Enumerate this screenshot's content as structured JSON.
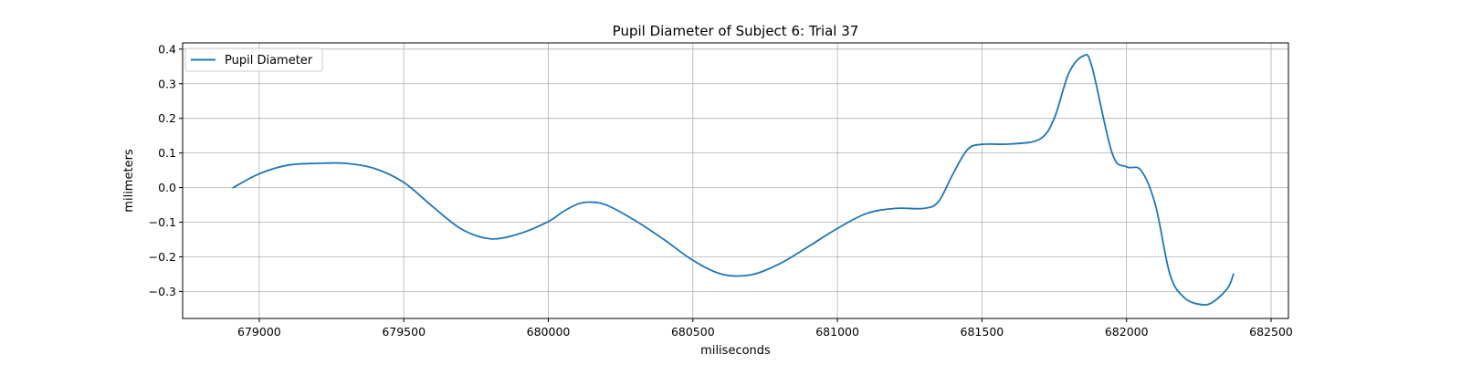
{
  "colors": {
    "series": "#1f77b4",
    "grid": "#b0b0b0",
    "axis": "#000000",
    "background": "#ffffff"
  },
  "chart_data": {
    "type": "line",
    "title": "Pupil Diameter of Subject 6: Trial 37",
    "xlabel": "miliseconds",
    "ylabel": "milimeters",
    "xlim": [
      678735,
      682560
    ],
    "ylim": [
      -0.378,
      0.418
    ],
    "xticks": [
      679000,
      679500,
      680000,
      680500,
      681000,
      681500,
      682000,
      682500
    ],
    "yticks": [
      -0.3,
      -0.2,
      -0.1,
      0.0,
      0.1,
      0.2,
      0.3,
      0.4
    ],
    "xtick_labels": [
      "679000",
      "679500",
      "680000",
      "680500",
      "681000",
      "681500",
      "682000",
      "682500"
    ],
    "ytick_labels": [
      "−0.3",
      "−0.2",
      "−0.1",
      "0.0",
      "0.1",
      "0.2",
      "0.3",
      "0.4"
    ],
    "grid": true,
    "legend_position": "upper-left",
    "series": [
      {
        "name": "Pupil Diameter",
        "x": [
          678910,
          679000,
          679100,
          679200,
          679300,
          679400,
          679500,
          679600,
          679700,
          679800,
          679900,
          680000,
          680050,
          680100,
          680140,
          680200,
          680300,
          680400,
          680500,
          680600,
          680700,
          680800,
          680900,
          681000,
          681100,
          681200,
          681300,
          681350,
          681400,
          681450,
          681500,
          681600,
          681700,
          681750,
          681800,
          681850,
          681880,
          681950,
          682000,
          682050,
          682100,
          682150,
          682200,
          682260,
          682300,
          682350,
          682370
        ],
        "y": [
          0.0,
          0.04,
          0.065,
          0.07,
          0.07,
          0.055,
          0.015,
          -0.055,
          -0.12,
          -0.148,
          -0.133,
          -0.098,
          -0.07,
          -0.048,
          -0.042,
          -0.05,
          -0.095,
          -0.15,
          -0.21,
          -0.25,
          -0.252,
          -0.22,
          -0.17,
          -0.118,
          -0.075,
          -0.06,
          -0.06,
          -0.04,
          0.04,
          0.11,
          0.125,
          0.126,
          0.14,
          0.2,
          0.33,
          0.38,
          0.35,
          0.1,
          0.06,
          0.05,
          -0.05,
          -0.25,
          -0.318,
          -0.338,
          -0.33,
          -0.29,
          -0.25
        ]
      }
    ]
  }
}
